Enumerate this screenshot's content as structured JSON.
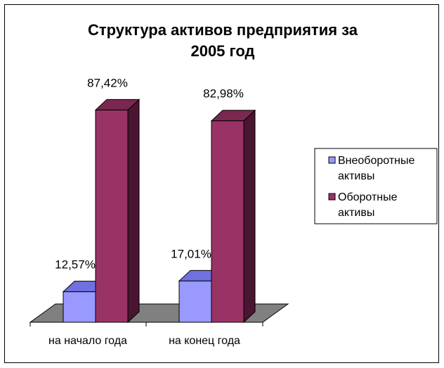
{
  "chart_data": {
    "type": "bar",
    "title_lines": [
      "Структура активов предприятия за",
      "2005 год"
    ],
    "categories": [
      "на начало года",
      "на конец года"
    ],
    "series": [
      {
        "name_lines": [
          "Внеоборотные",
          "активы"
        ],
        "values": [
          12.57,
          17.01
        ],
        "labels": [
          "12,57%",
          "17,01%"
        ],
        "color": "#9999ff",
        "color_top": "#7070e0",
        "color_side": "#55559f"
      },
      {
        "name_lines": [
          "Оборотные",
          "активы"
        ],
        "values": [
          87.42,
          82.98
        ],
        "labels": [
          "87,42%",
          "82,98%"
        ],
        "color": "#993366",
        "color_top": "#7a2850",
        "color_side": "#4a1530"
      }
    ],
    "ylim": [
      0,
      100
    ],
    "three_d": true,
    "legend_position": "right",
    "grid": false
  }
}
